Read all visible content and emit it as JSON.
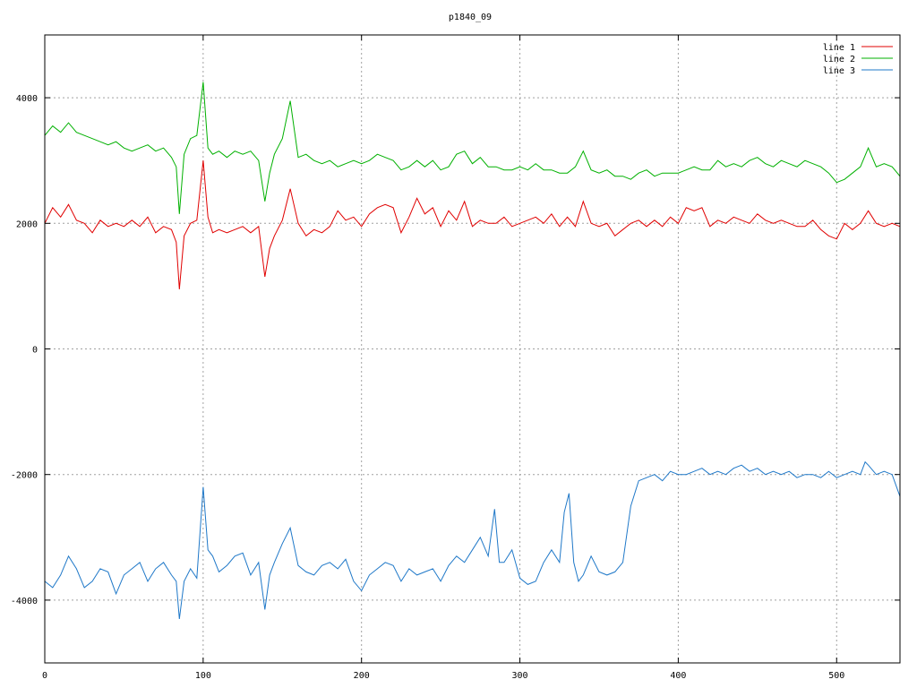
{
  "chart_data": {
    "type": "line",
    "title": "p1840_09",
    "xlabel": "",
    "ylabel": "",
    "xlim": [
      0,
      540
    ],
    "ylim": [
      -5000,
      5000
    ],
    "xticks": [
      0,
      100,
      200,
      300,
      400,
      500
    ],
    "yticks": [
      -4000,
      -2000,
      0,
      2000,
      4000
    ],
    "grid": true,
    "legend_position": "top-right",
    "series": [
      {
        "name": "line 1",
        "color": "#e00000",
        "x": [
          0,
          5,
          10,
          15,
          20,
          25,
          30,
          35,
          40,
          45,
          50,
          55,
          60,
          65,
          70,
          75,
          80,
          83,
          85,
          88,
          92,
          96,
          100,
          103,
          106,
          110,
          115,
          120,
          125,
          130,
          135,
          139,
          142,
          145,
          150,
          155,
          160,
          165,
          170,
          175,
          180,
          185,
          190,
          195,
          200,
          205,
          210,
          215,
          220,
          225,
          230,
          235,
          240,
          245,
          250,
          255,
          260,
          265,
          270,
          275,
          280,
          285,
          290,
          295,
          300,
          305,
          310,
          315,
          320,
          325,
          330,
          335,
          340,
          345,
          350,
          355,
          360,
          365,
          370,
          375,
          380,
          385,
          390,
          395,
          400,
          405,
          410,
          415,
          420,
          425,
          430,
          435,
          440,
          445,
          450,
          455,
          460,
          465,
          470,
          475,
          480,
          485,
          490,
          495,
          500,
          505,
          510,
          515,
          520,
          525,
          530,
          535,
          540
        ],
        "y": [
          2000,
          2250,
          2100,
          2300,
          2050,
          2000,
          1850,
          2050,
          1950,
          2000,
          1950,
          2050,
          1950,
          2100,
          1850,
          1950,
          1900,
          1700,
          950,
          1800,
          2000,
          2050,
          3000,
          2100,
          1850,
          1900,
          1850,
          1900,
          1950,
          1850,
          1950,
          1150,
          1600,
          1800,
          2050,
          2550,
          2000,
          1800,
          1900,
          1850,
          1950,
          2200,
          2050,
          2100,
          1950,
          2150,
          2250,
          2300,
          2250,
          1850,
          2100,
          2400,
          2150,
          2250,
          1950,
          2200,
          2050,
          2350,
          1950,
          2050,
          2000,
          2000,
          2100,
          1950,
          2000,
          2050,
          2100,
          2000,
          2150,
          1950,
          2100,
          1950,
          2350,
          2000,
          1950,
          2000,
          1800,
          1900,
          2000,
          2050,
          1950,
          2050,
          1950,
          2100,
          2000,
          2250,
          2200,
          2250,
          1950,
          2050,
          2000,
          2100,
          2050,
          2000,
          2150,
          2050,
          2000,
          2050,
          2000,
          1950,
          1950,
          2050,
          1900,
          1800,
          1750,
          2000,
          1900,
          2000,
          2200,
          2000,
          1950,
          2000,
          1950
        ]
      },
      {
        "name": "line 2",
        "color": "#00b000",
        "x": [
          0,
          5,
          10,
          15,
          20,
          25,
          30,
          35,
          40,
          45,
          50,
          55,
          60,
          65,
          70,
          75,
          80,
          83,
          85,
          88,
          92,
          96,
          100,
          103,
          106,
          110,
          115,
          120,
          125,
          130,
          135,
          139,
          142,
          145,
          150,
          155,
          160,
          165,
          170,
          175,
          180,
          185,
          190,
          195,
          200,
          205,
          210,
          215,
          220,
          225,
          230,
          235,
          240,
          245,
          250,
          255,
          260,
          265,
          270,
          275,
          280,
          285,
          290,
          295,
          300,
          305,
          310,
          315,
          320,
          325,
          330,
          335,
          340,
          345,
          350,
          355,
          360,
          365,
          370,
          375,
          380,
          385,
          390,
          395,
          400,
          405,
          410,
          415,
          420,
          425,
          430,
          435,
          440,
          445,
          450,
          455,
          460,
          465,
          470,
          475,
          480,
          485,
          490,
          495,
          500,
          505,
          510,
          515,
          520,
          525,
          530,
          535,
          540
        ],
        "y": [
          3400,
          3550,
          3450,
          3600,
          3450,
          3400,
          3350,
          3300,
          3250,
          3300,
          3200,
          3150,
          3200,
          3250,
          3150,
          3200,
          3050,
          2900,
          2150,
          3100,
          3350,
          3400,
          4250,
          3200,
          3100,
          3150,
          3050,
          3150,
          3100,
          3150,
          3000,
          2350,
          2800,
          3100,
          3350,
          3950,
          3050,
          3100,
          3000,
          2950,
          3000,
          2900,
          2950,
          3000,
          2950,
          3000,
          3100,
          3050,
          3000,
          2850,
          2900,
          3000,
          2900,
          3000,
          2850,
          2900,
          3100,
          3150,
          2950,
          3050,
          2900,
          2900,
          2850,
          2850,
          2900,
          2850,
          2950,
          2850,
          2850,
          2800,
          2800,
          2900,
          3150,
          2850,
          2800,
          2850,
          2750,
          2750,
          2700,
          2800,
          2850,
          2750,
          2800,
          2800,
          2800,
          2850,
          2900,
          2850,
          2850,
          3000,
          2900,
          2950,
          2900,
          3000,
          3050,
          2950,
          2900,
          3000,
          2950,
          2900,
          3000,
          2950,
          2900,
          2800,
          2650,
          2700,
          2800,
          2900,
          3200,
          2900,
          2950,
          2900,
          2750
        ]
      },
      {
        "name": "line 3",
        "color": "#1f78c8",
        "x": [
          0,
          5,
          10,
          15,
          20,
          25,
          30,
          35,
          40,
          45,
          50,
          55,
          60,
          65,
          70,
          75,
          80,
          83,
          85,
          88,
          92,
          96,
          100,
          103,
          106,
          110,
          115,
          120,
          125,
          130,
          135,
          139,
          142,
          145,
          150,
          155,
          160,
          165,
          170,
          175,
          180,
          185,
          190,
          195,
          200,
          205,
          210,
          215,
          220,
          225,
          230,
          235,
          240,
          245,
          250,
          255,
          260,
          265,
          270,
          275,
          280,
          284,
          287,
          290,
          295,
          300,
          305,
          310,
          315,
          320,
          325,
          328,
          331,
          334,
          337,
          340,
          345,
          350,
          355,
          360,
          365,
          370,
          375,
          380,
          385,
          390,
          395,
          400,
          405,
          410,
          415,
          420,
          425,
          430,
          435,
          440,
          445,
          450,
          455,
          460,
          465,
          470,
          475,
          480,
          485,
          490,
          495,
          500,
          505,
          510,
          515,
          518,
          520,
          525,
          530,
          535,
          540
        ],
        "y": [
          -3700,
          -3800,
          -3600,
          -3300,
          -3500,
          -3800,
          -3700,
          -3500,
          -3550,
          -3900,
          -3600,
          -3500,
          -3400,
          -3700,
          -3500,
          -3400,
          -3600,
          -3700,
          -4300,
          -3700,
          -3500,
          -3650,
          -2200,
          -3200,
          -3300,
          -3550,
          -3450,
          -3300,
          -3250,
          -3600,
          -3400,
          -4150,
          -3600,
          -3400,
          -3100,
          -2850,
          -3450,
          -3550,
          -3600,
          -3450,
          -3400,
          -3500,
          -3350,
          -3700,
          -3850,
          -3600,
          -3500,
          -3400,
          -3450,
          -3700,
          -3500,
          -3600,
          -3550,
          -3500,
          -3700,
          -3450,
          -3300,
          -3400,
          -3200,
          -3000,
          -3300,
          -2550,
          -3400,
          -3400,
          -3200,
          -3650,
          -3750,
          -3700,
          -3400,
          -3200,
          -3400,
          -2600,
          -2300,
          -3400,
          -3700,
          -3600,
          -3300,
          -3550,
          -3600,
          -3550,
          -3400,
          -2500,
          -2100,
          -2050,
          -2000,
          -2100,
          -1950,
          -2000,
          -2000,
          -1950,
          -1900,
          -2000,
          -1950,
          -2000,
          -1900,
          -1850,
          -1950,
          -1900,
          -2000,
          -1950,
          -2000,
          -1950,
          -2050,
          -2000,
          -2000,
          -2050,
          -1950,
          -2050,
          -2000,
          -1950,
          -2000,
          -1800,
          -1850,
          -2000,
          -1950,
          -2000,
          -2350
        ]
      }
    ]
  }
}
